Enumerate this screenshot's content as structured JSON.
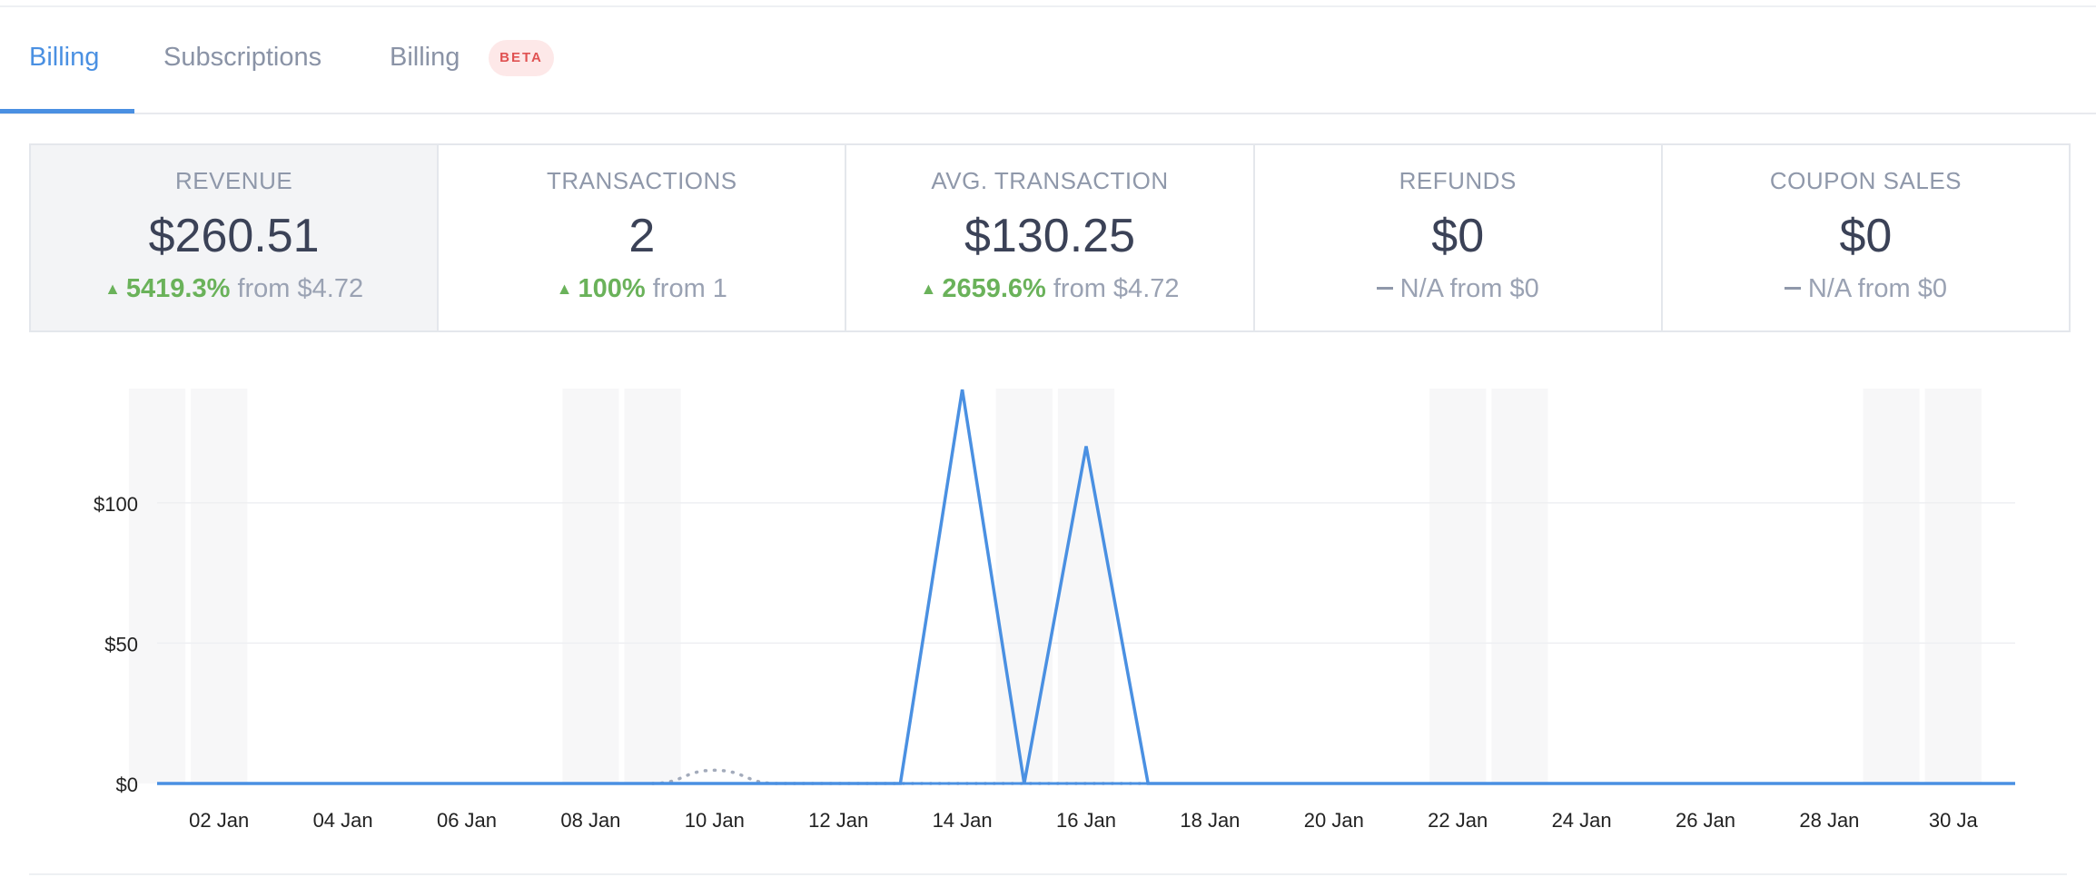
{
  "tabs": [
    {
      "label": "Billing",
      "active": true
    },
    {
      "label": "Subscriptions",
      "active": false
    },
    {
      "label": "Billing",
      "active": false,
      "badge": "BETA"
    }
  ],
  "stats": [
    {
      "label": "REVENUE",
      "value": "$260.51",
      "trend": "up",
      "change": "5419.3%",
      "from": "from $4.72",
      "selected": true
    },
    {
      "label": "TRANSACTIONS",
      "value": "2",
      "trend": "up",
      "change": "100%",
      "from": "from 1",
      "selected": false
    },
    {
      "label": "AVG. TRANSACTION",
      "value": "$130.25",
      "trend": "up",
      "change": "2659.6%",
      "from": "from $4.72",
      "selected": false
    },
    {
      "label": "REFUNDS",
      "value": "$0",
      "trend": "flat",
      "change": "",
      "from": "N/A from $0",
      "selected": false
    },
    {
      "label": "COUPON SALES",
      "value": "$0",
      "trend": "flat",
      "change": "",
      "from": "N/A from $0",
      "selected": false
    }
  ],
  "colors": {
    "accent": "#4a90e2",
    "positive": "#6ab25a",
    "badge_text": "#e05252",
    "badge_bg": "#fde8e8",
    "previous_period": "#a3abbb"
  },
  "chart_data": {
    "type": "line",
    "xlabel": "",
    "ylabel": "",
    "x_range_days": [
      1,
      31
    ],
    "ylim": [
      0,
      142
    ],
    "y_ticks": [
      {
        "v": 0,
        "label": "$0"
      },
      {
        "v": 50,
        "label": "$50"
      },
      {
        "v": 100,
        "label": "$100"
      }
    ],
    "x_tick_labels": [
      "02 Jan",
      "04 Jan",
      "06 Jan",
      "08 Jan",
      "10 Jan",
      "12 Jan",
      "14 Jan",
      "16 Jan",
      "18 Jan",
      "20 Jan",
      "22 Jan",
      "24 Jan",
      "26 Jan",
      "28 Jan",
      "30 Ja"
    ],
    "weekend_days": [
      1,
      2,
      8,
      9,
      15,
      16,
      22,
      23,
      29,
      30
    ],
    "grid": true,
    "series": [
      {
        "style": "solid",
        "points": [
          [
            1,
            0
          ],
          [
            2,
            0
          ],
          [
            3,
            0
          ],
          [
            4,
            0
          ],
          [
            5,
            0
          ],
          [
            6,
            0
          ],
          [
            7,
            0
          ],
          [
            8,
            0
          ],
          [
            9,
            0
          ],
          [
            10,
            0
          ],
          [
            11,
            0
          ],
          [
            12,
            0
          ],
          [
            13,
            0
          ],
          [
            14,
            140.35
          ],
          [
            15,
            0
          ],
          [
            16,
            120.16
          ],
          [
            17,
            0
          ],
          [
            18,
            0
          ],
          [
            19,
            0
          ],
          [
            20,
            0
          ],
          [
            21,
            0
          ],
          [
            22,
            0
          ],
          [
            23,
            0
          ],
          [
            24,
            0
          ],
          [
            25,
            0
          ],
          [
            26,
            0
          ],
          [
            27,
            0
          ],
          [
            28,
            0
          ],
          [
            29,
            0
          ],
          [
            30,
            0
          ],
          [
            31,
            0
          ]
        ]
      },
      {
        "style": "dotted",
        "points": [
          [
            9,
            0
          ],
          [
            10,
            4.72
          ],
          [
            11,
            0
          ],
          [
            12,
            0
          ],
          [
            13,
            0
          ],
          [
            14,
            0
          ],
          [
            15,
            0
          ],
          [
            16,
            0
          ],
          [
            17,
            0
          ]
        ]
      }
    ]
  }
}
